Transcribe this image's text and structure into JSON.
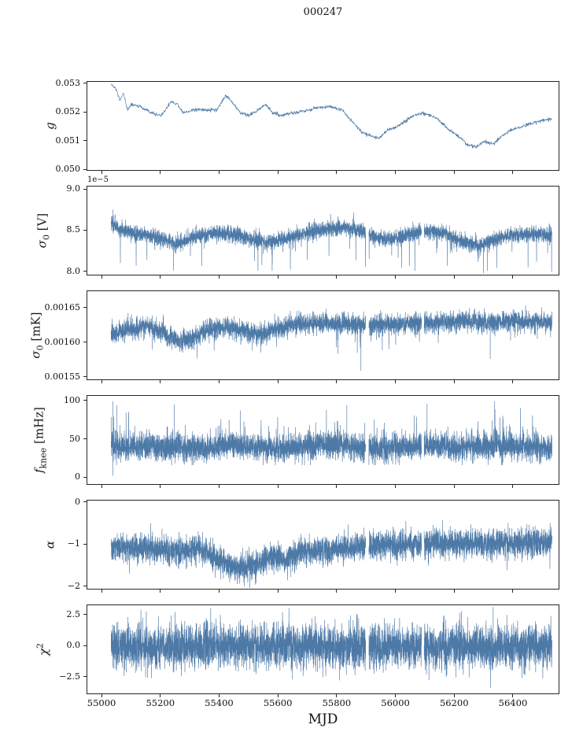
{
  "chart_data": {
    "type": "line",
    "title": "000247",
    "xlabel": "MJD",
    "line_color": "#4d79a7",
    "axis_color": "#262626",
    "legend": "none",
    "grid": false,
    "xlim": [
      54949,
      56558
    ],
    "x_data_range": [
      55030,
      56530
    ],
    "xticks": [
      {
        "value": 55000,
        "label": "55000"
      },
      {
        "value": 55200,
        "label": "55200"
      },
      {
        "value": 55400,
        "label": "55400"
      },
      {
        "value": 55600,
        "label": "55600"
      },
      {
        "value": 55800,
        "label": "55800"
      },
      {
        "value": 56000,
        "label": "56000"
      },
      {
        "value": 56200,
        "label": "56200"
      },
      {
        "value": 56400,
        "label": "56400"
      }
    ],
    "panels": [
      {
        "name": "g",
        "ylabel_plain": "g",
        "ylabel_parts": {
          "italic": "g",
          "sub": "",
          "sup": "",
          "unit": ""
        },
        "offset_text": "",
        "ylim": [
          0.04995,
          0.05308
        ],
        "yticks": [
          {
            "value": 0.05,
            "label": "0.050"
          },
          {
            "value": 0.051,
            "label": "0.051"
          },
          {
            "value": 0.052,
            "label": "0.052"
          },
          {
            "value": 0.053,
            "label": "0.053"
          }
        ],
        "signal": {
          "n": 1600,
          "noise": 3e-05,
          "clamp": [
            0.05,
            0.05305
          ],
          "keypoints": [
            [
              55030,
              0.053
            ],
            [
              55048,
              0.0528
            ],
            [
              55060,
              0.0524
            ],
            [
              55072,
              0.0527
            ],
            [
              55085,
              0.0521
            ],
            [
              55100,
              0.0523
            ],
            [
              55130,
              0.0522
            ],
            [
              55165,
              0.052
            ],
            [
              55200,
              0.0519
            ],
            [
              55235,
              0.0524
            ],
            [
              55255,
              0.0523
            ],
            [
              55275,
              0.052
            ],
            [
              55310,
              0.0521
            ],
            [
              55350,
              0.0521
            ],
            [
              55390,
              0.0521
            ],
            [
              55420,
              0.0526
            ],
            [
              55440,
              0.0524
            ],
            [
              55470,
              0.052
            ],
            [
              55500,
              0.0519
            ],
            [
              55530,
              0.0521
            ],
            [
              55555,
              0.0523
            ],
            [
              55580,
              0.052
            ],
            [
              55610,
              0.0519
            ],
            [
              55650,
              0.052
            ],
            [
              55700,
              0.0521
            ],
            [
              55745,
              0.0522
            ],
            [
              55780,
              0.0522
            ],
            [
              55815,
              0.0521
            ],
            [
              55850,
              0.0517
            ],
            [
              55885,
              0.0513
            ],
            [
              55915,
              0.0512
            ],
            [
              55940,
              0.0511
            ],
            [
              55970,
              0.0514
            ],
            [
              56000,
              0.0515
            ],
            [
              56030,
              0.0517
            ],
            [
              56060,
              0.0519
            ],
            [
              56090,
              0.052
            ],
            [
              56120,
              0.0519
            ],
            [
              56150,
              0.0517
            ],
            [
              56180,
              0.0514
            ],
            [
              56210,
              0.0512
            ],
            [
              56240,
              0.0509
            ],
            [
              56270,
              0.0508
            ],
            [
              56300,
              0.051
            ],
            [
              56330,
              0.0509
            ],
            [
              56360,
              0.0512
            ],
            [
              56390,
              0.0514
            ],
            [
              56420,
              0.0515
            ],
            [
              56450,
              0.0516
            ],
            [
              56480,
              0.0517
            ],
            [
              56530,
              0.0518
            ]
          ]
        }
      },
      {
        "name": "sigma0_V",
        "ylabel_plain": "sigma_0 [V]",
        "ylabel_parts": {
          "italic": "σ",
          "sub": "0",
          "sup": "",
          "unit": " [V]"
        },
        "offset_text": "1e−5",
        "ylim": [
          7.95,
          9.04
        ],
        "yticks": [
          {
            "value": 8.0,
            "label": "8.0"
          },
          {
            "value": 8.5,
            "label": "8.5"
          },
          {
            "value": 9.0,
            "label": "9.0"
          }
        ],
        "signal": {
          "n": 5200,
          "noise": 0.045,
          "clamp": [
            7.99,
            8.82
          ],
          "down": [
            0.01,
            0.1,
            0.4
          ],
          "up": [
            0.003,
            0.05,
            0.15
          ],
          "gaps": [
            [
              55896,
              55907
            ],
            [
              56086,
              56095
            ]
          ],
          "events": [
            [
              55036,
              8.76
            ],
            [
              55044,
              8.7
            ]
          ],
          "keypoints": [
            [
              55030,
              8.6
            ],
            [
              55060,
              8.52
            ],
            [
              55100,
              8.48
            ],
            [
              55150,
              8.45
            ],
            [
              55210,
              8.4
            ],
            [
              55250,
              8.33
            ],
            [
              55300,
              8.42
            ],
            [
              55350,
              8.46
            ],
            [
              55420,
              8.48
            ],
            [
              55480,
              8.43
            ],
            [
              55550,
              8.37
            ],
            [
              55620,
              8.4
            ],
            [
              55700,
              8.48
            ],
            [
              55770,
              8.53
            ],
            [
              55830,
              8.55
            ],
            [
              55880,
              8.5
            ],
            [
              55930,
              8.42
            ],
            [
              55990,
              8.4
            ],
            [
              56050,
              8.46
            ],
            [
              56110,
              8.5
            ],
            [
              56170,
              8.46
            ],
            [
              56230,
              8.36
            ],
            [
              56280,
              8.33
            ],
            [
              56340,
              8.4
            ],
            [
              56400,
              8.45
            ],
            [
              56460,
              8.47
            ],
            [
              56530,
              8.45
            ]
          ]
        }
      },
      {
        "name": "sigma0_mK",
        "ylabel_plain": "sigma_0 [mK]",
        "ylabel_parts": {
          "italic": "σ",
          "sub": "0",
          "sup": "",
          "unit": " [mK]"
        },
        "offset_text": "",
        "ylim": [
          0.001545,
          0.001675
        ],
        "yticks": [
          {
            "value": 0.00155,
            "label": "0.00155"
          },
          {
            "value": 0.0016,
            "label": "0.00160"
          },
          {
            "value": 0.00165,
            "label": "0.00165"
          }
        ],
        "signal": {
          "n": 5200,
          "noise": 7e-06,
          "clamp": [
            0.001556,
            0.001668
          ],
          "down": [
            0.007,
            1e-05,
            4e-05
          ],
          "gaps": [
            [
              55896,
              55907
            ],
            [
              56086,
              56095
            ]
          ],
          "events": [
            [
              55880,
              0.00156
            ],
            [
              56320,
              0.001577
            ]
          ],
          "keypoints": [
            [
              55030,
              0.001612
            ],
            [
              55090,
              0.001621
            ],
            [
              55150,
              0.001624
            ],
            [
              55210,
              0.001614
            ],
            [
              55260,
              0.001601
            ],
            [
              55300,
              0.001606
            ],
            [
              55350,
              0.001618
            ],
            [
              55420,
              0.001623
            ],
            [
              55480,
              0.001618
            ],
            [
              55540,
              0.001612
            ],
            [
              55600,
              0.00162
            ],
            [
              55660,
              0.001627
            ],
            [
              55740,
              0.001629
            ],
            [
              55820,
              0.001628
            ],
            [
              55900,
              0.001626
            ],
            [
              55980,
              0.001627
            ],
            [
              56060,
              0.001628
            ],
            [
              56140,
              0.00163
            ],
            [
              56220,
              0.001632
            ],
            [
              56300,
              0.00163
            ],
            [
              56380,
              0.001631
            ],
            [
              56460,
              0.00163
            ],
            [
              56530,
              0.00163
            ]
          ]
        }
      },
      {
        "name": "f_knee",
        "ylabel_plain": "f_knee [mHz]",
        "ylabel_parts": {
          "italic": "f",
          "sub": "knee",
          "sup": "",
          "unit": " [mHz]"
        },
        "offset_text": "",
        "ylim": [
          -10,
          107
        ],
        "yticks": [
          {
            "value": 0,
            "label": "0"
          },
          {
            "value": 50,
            "label": "50"
          },
          {
            "value": 100,
            "label": "100"
          }
        ],
        "signal": {
          "n": 5200,
          "noise": 8.5,
          "clamp": [
            17,
            100
          ],
          "up": [
            0.015,
            8,
            40
          ],
          "down": [
            0.004,
            5,
            14
          ],
          "gaps": [
            [
              55896,
              55907
            ],
            [
              56086,
              56095
            ]
          ],
          "events": [
            [
              55036,
              100
            ],
            [
              55036,
              3
            ],
            [
              55050,
              95
            ],
            [
              55245,
              96
            ],
            [
              55470,
              88
            ],
            [
              55832,
              95
            ],
            [
              56105,
              97
            ],
            [
              56335,
              100
            ]
          ],
          "keypoints": [
            [
              55030,
              42
            ],
            [
              55200,
              40
            ],
            [
              55350,
              38
            ],
            [
              55420,
              44
            ],
            [
              55500,
              40
            ],
            [
              55600,
              38
            ],
            [
              55700,
              42
            ],
            [
              55800,
              44
            ],
            [
              55900,
              38
            ],
            [
              56000,
              40
            ],
            [
              56100,
              42
            ],
            [
              56200,
              40
            ],
            [
              56300,
              42
            ],
            [
              56400,
              42
            ],
            [
              56530,
              40
            ]
          ]
        }
      },
      {
        "name": "alpha",
        "ylabel_plain": "alpha",
        "ylabel_parts": {
          "italic": "α",
          "sub": "",
          "sup": "",
          "unit": ""
        },
        "offset_text": "",
        "ylim": [
          -2.08,
          0.05
        ],
        "yticks": [
          {
            "value": 0,
            "label": "0"
          },
          {
            "value": -1,
            "label": "−1"
          },
          {
            "value": -2,
            "label": "−2"
          }
        ],
        "signal": {
          "n": 5200,
          "noise": 0.16,
          "clamp": [
            -2.02,
            -0.42
          ],
          "down": [
            0.008,
            0.1,
            0.35
          ],
          "gaps": [
            [
              55896,
              55907
            ],
            [
              56086,
              56095
            ]
          ],
          "keypoints": [
            [
              55030,
              -1.05
            ],
            [
              55150,
              -1.08
            ],
            [
              55250,
              -1.15
            ],
            [
              55330,
              -1.1
            ],
            [
              55400,
              -1.35
            ],
            [
              55450,
              -1.55
            ],
            [
              55520,
              -1.5
            ],
            [
              55570,
              -1.3
            ],
            [
              55620,
              -1.35
            ],
            [
              55680,
              -1.15
            ],
            [
              55750,
              -1.12
            ],
            [
              55850,
              -1.05
            ],
            [
              55950,
              -1.0
            ],
            [
              56050,
              -0.97
            ],
            [
              56150,
              -0.95
            ],
            [
              56250,
              -0.97
            ],
            [
              56350,
              -0.95
            ],
            [
              56450,
              -0.95
            ],
            [
              56530,
              -0.95
            ]
          ]
        }
      },
      {
        "name": "chi2",
        "ylabel_plain": "chi^2",
        "ylabel_parts": {
          "italic": "χ",
          "sub": "",
          "sup": "2",
          "unit": ""
        },
        "offset_text": "",
        "ylim": [
          -3.9,
          3.3
        ],
        "yticks": [
          {
            "value": 2.5,
            "label": "2.5"
          },
          {
            "value": 0.0,
            "label": "0.0"
          },
          {
            "value": -2.5,
            "label": "−2.5"
          }
        ],
        "signal": {
          "n": 5200,
          "noise": 0.85,
          "clamp": [
            -3.3,
            3.05
          ],
          "up": [
            0.002,
            0.3,
            0.9
          ],
          "down": [
            0.002,
            0.3,
            0.9
          ],
          "gaps": [
            [
              55896,
              55907
            ],
            [
              56086,
              56095
            ]
          ],
          "events": [
            [
              56330,
              3.15
            ]
          ],
          "keypoints": [
            [
              55030,
              0
            ],
            [
              56530,
              0
            ]
          ]
        }
      }
    ]
  }
}
